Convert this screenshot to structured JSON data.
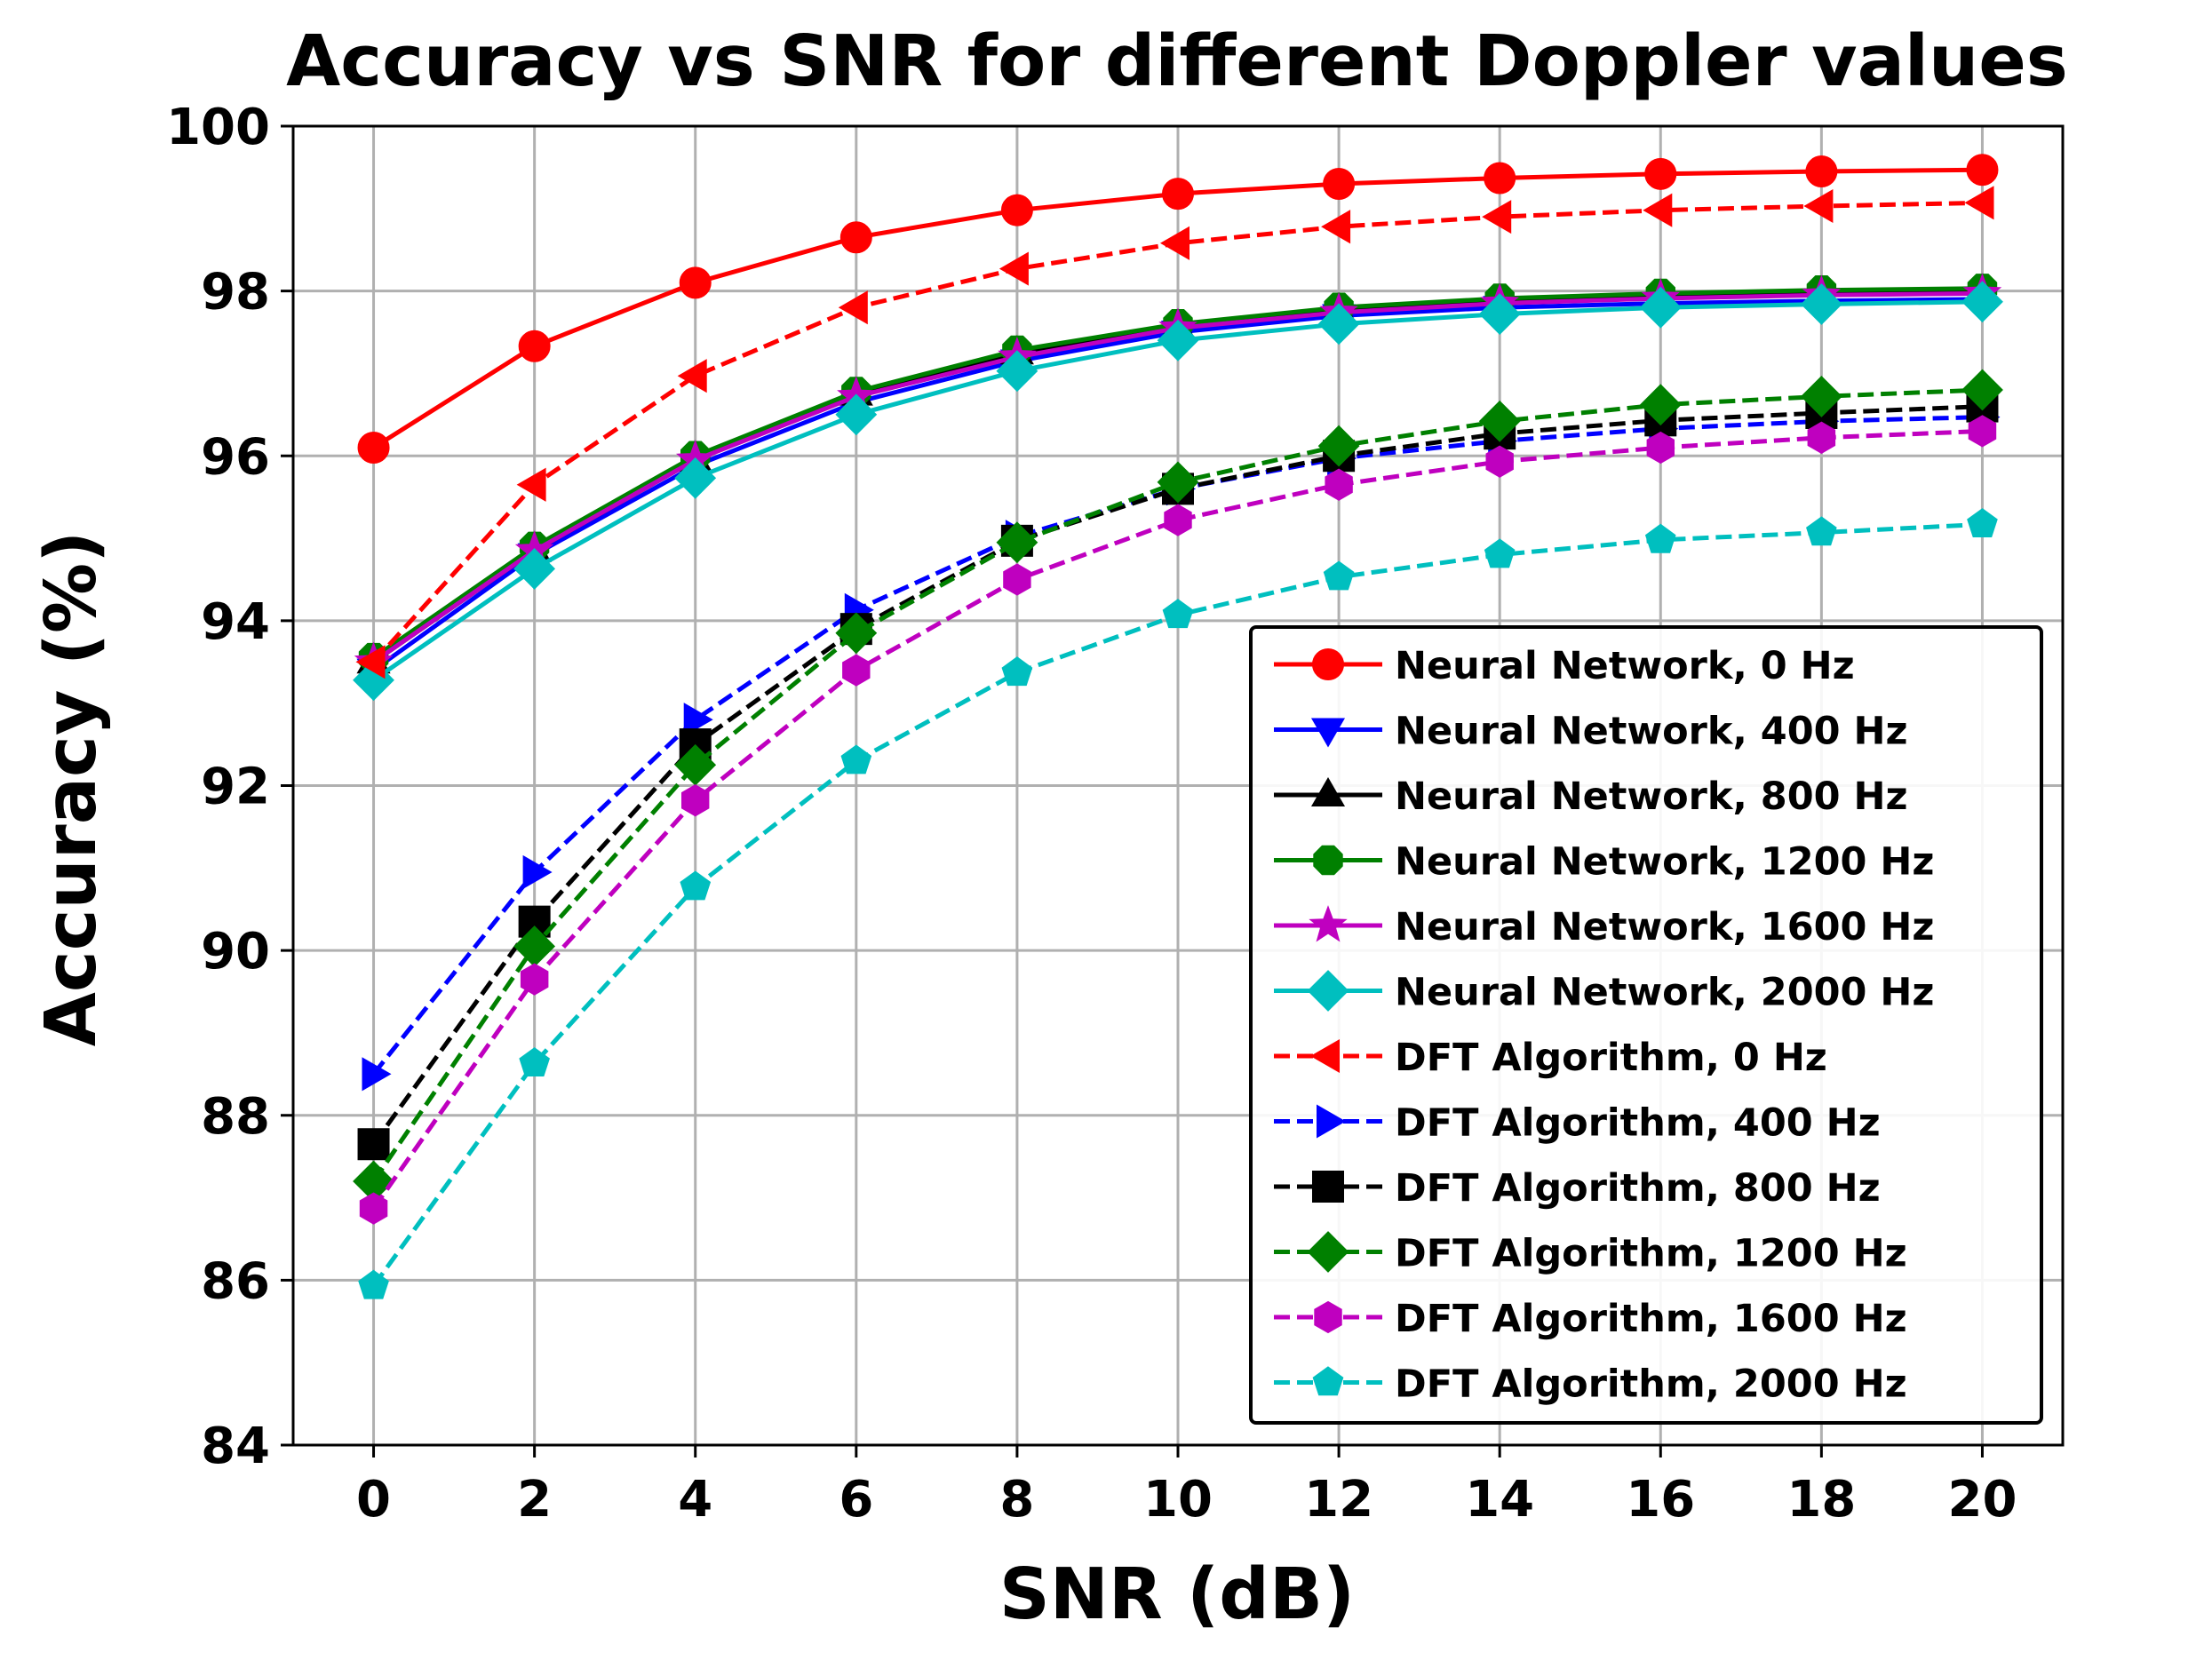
{
  "chart_data": {
    "type": "line",
    "title": "Accuracy vs SNR for different Doppler values",
    "xlabel": "SNR (dB)",
    "ylabel": "Accuracy (%)",
    "x": [
      0,
      2,
      4,
      6,
      8,
      10,
      12,
      14,
      16,
      18,
      20
    ],
    "xlim": [
      -1,
      21
    ],
    "ylim": [
      84,
      100
    ],
    "xticks": [
      0,
      2,
      4,
      6,
      8,
      10,
      12,
      14,
      16,
      18,
      20
    ],
    "yticks": [
      84,
      86,
      88,
      90,
      92,
      94,
      96,
      98,
      100
    ],
    "grid": true,
    "legend_position": "lower-right",
    "series": [
      {
        "name": "Neural Network, 0 Hz",
        "color": "#ff0000",
        "dash": "solid",
        "marker": "circle",
        "values": [
          96.1,
          97.33,
          98.1,
          98.65,
          98.98,
          99.18,
          99.3,
          99.37,
          99.42,
          99.45,
          99.47
        ]
      },
      {
        "name": "Neural Network, 400 Hz",
        "color": "#0000ff",
        "dash": "solid",
        "marker": "triangle-down",
        "values": [
          93.4,
          94.8,
          95.88,
          96.65,
          97.15,
          97.5,
          97.7,
          97.8,
          97.85,
          97.88,
          97.9
        ]
      },
      {
        "name": "Neural Network, 800 Hz",
        "color": "#000000",
        "dash": "solid",
        "marker": "triangle-up",
        "values": [
          93.5,
          94.85,
          95.95,
          96.75,
          97.25,
          97.57,
          97.77,
          97.88,
          97.93,
          97.97,
          98.0
        ]
      },
      {
        "name": "Neural Network, 1200 Hz",
        "color": "#008000",
        "dash": "solid",
        "marker": "octagon",
        "values": [
          93.55,
          94.9,
          96.0,
          96.78,
          97.28,
          97.6,
          97.8,
          97.91,
          97.97,
          98.01,
          98.03
        ]
      },
      {
        "name": "Neural Network, 1600 Hz",
        "color": "#bf00bf",
        "dash": "solid",
        "marker": "star",
        "values": [
          93.5,
          94.85,
          95.95,
          96.72,
          97.2,
          97.55,
          97.74,
          97.85,
          97.91,
          97.95,
          97.97
        ]
      },
      {
        "name": "Neural Network, 2000 Hz",
        "color": "#00bfbf",
        "dash": "solid",
        "marker": "diamond",
        "values": [
          93.28,
          94.63,
          95.73,
          96.5,
          97.03,
          97.4,
          97.6,
          97.72,
          97.8,
          97.84,
          97.87
        ]
      },
      {
        "name": "DFT Algorithm, 0 Hz",
        "color": "#ff0000",
        "dash": "dashed",
        "marker": "triangle-left",
        "values": [
          93.5,
          95.65,
          96.97,
          97.8,
          98.27,
          98.58,
          98.78,
          98.9,
          98.98,
          99.03,
          99.07
        ]
      },
      {
        "name": "DFT Algorithm, 400 Hz",
        "color": "#0000ff",
        "dash": "dashed",
        "marker": "triangle-right",
        "values": [
          88.5,
          90.95,
          92.8,
          94.13,
          95.02,
          95.6,
          95.97,
          96.18,
          96.33,
          96.42,
          96.47
        ]
      },
      {
        "name": "DFT Algorithm, 800 Hz",
        "color": "#000000",
        "dash": "dashed",
        "marker": "square",
        "values": [
          87.65,
          90.35,
          92.5,
          93.9,
          94.97,
          95.6,
          96.0,
          96.27,
          96.43,
          96.52,
          96.6
        ]
      },
      {
        "name": "DFT Algorithm, 1200 Hz",
        "color": "#008000",
        "dash": "dashed",
        "marker": "diamond",
        "values": [
          87.2,
          90.05,
          92.25,
          93.85,
          94.95,
          95.68,
          96.12,
          96.42,
          96.62,
          96.72,
          96.8
        ]
      },
      {
        "name": "DFT Algorithm, 1600 Hz",
        "color": "#bf00bf",
        "dash": "dashed",
        "marker": "hexagon",
        "values": [
          86.87,
          89.65,
          91.82,
          93.4,
          94.5,
          95.22,
          95.65,
          95.93,
          96.1,
          96.22,
          96.3
        ]
      },
      {
        "name": "DFT Algorithm, 2000 Hz",
        "color": "#00bfbf",
        "dash": "dashed",
        "marker": "pentagon",
        "values": [
          85.93,
          88.63,
          90.77,
          92.3,
          93.37,
          94.07,
          94.53,
          94.8,
          94.98,
          95.07,
          95.17
        ]
      }
    ]
  }
}
